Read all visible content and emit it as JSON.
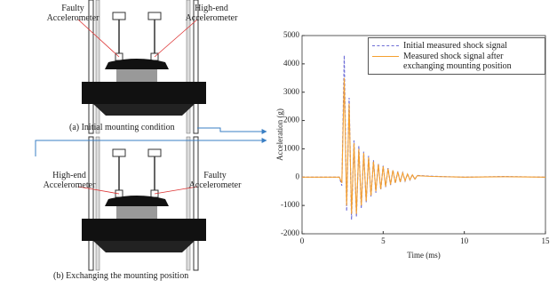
{
  "figure": {
    "diagram_a": {
      "left_label": "Faulty Accelerometer",
      "right_label": "High-end Accelerometer",
      "caption": "(a) Initial mounting condition"
    },
    "diagram_b": {
      "left_label": "High-end Accelerometer",
      "right_label": "Faulty Accelerometer",
      "caption": "(b) Exchanging the mounting position"
    }
  },
  "chart_data": {
    "type": "line",
    "x_label": "Time (ms)",
    "y_label": "Acceleration (g)",
    "x": [
      0,
      2.3,
      2.45,
      2.6,
      2.75,
      2.9,
      3.05,
      3.2,
      3.35,
      3.5,
      3.65,
      3.8,
      3.95,
      4.1,
      4.25,
      4.4,
      4.55,
      4.7,
      4.85,
      5.0,
      5.15,
      5.3,
      5.45,
      5.6,
      5.75,
      5.9,
      6.05,
      6.2,
      6.35,
      6.5,
      6.65,
      6.8,
      6.95,
      7.1,
      8,
      10,
      12.5,
      15
    ],
    "series": [
      {
        "name": "Initial measured shock signal",
        "color": "#6b6bd6",
        "dashed": true,
        "values": [
          0,
          0,
          -300,
          4300,
          -1200,
          2800,
          -1500,
          1300,
          -1400,
          1100,
          -1100,
          900,
          -900,
          750,
          -700,
          600,
          -550,
          480,
          -450,
          400,
          -350,
          320,
          -280,
          250,
          -220,
          200,
          -180,
          160,
          -140,
          120,
          -100,
          90,
          -80,
          60,
          30,
          0,
          20,
          0
        ]
      },
      {
        "name": "Measured shock signal after exchanging mounting position",
        "color": "#f5a030",
        "dashed": false,
        "values": [
          0,
          0,
          -200,
          3500,
          -1000,
          2600,
          -1300,
          1200,
          -1300,
          1000,
          -1000,
          850,
          -850,
          700,
          -650,
          550,
          -500,
          450,
          -420,
          380,
          -330,
          300,
          -260,
          240,
          -200,
          190,
          -170,
          150,
          -130,
          110,
          -90,
          80,
          -70,
          50,
          25,
          0,
          15,
          0
        ]
      }
    ],
    "xlim": [
      0,
      15
    ],
    "xticks": [
      0,
      5,
      10,
      15
    ],
    "ylim": [
      -2000,
      5000
    ],
    "yticks": [
      -2000,
      -1000,
      0,
      1000,
      2000,
      3000,
      4000,
      5000
    ],
    "legend": "upper right"
  }
}
